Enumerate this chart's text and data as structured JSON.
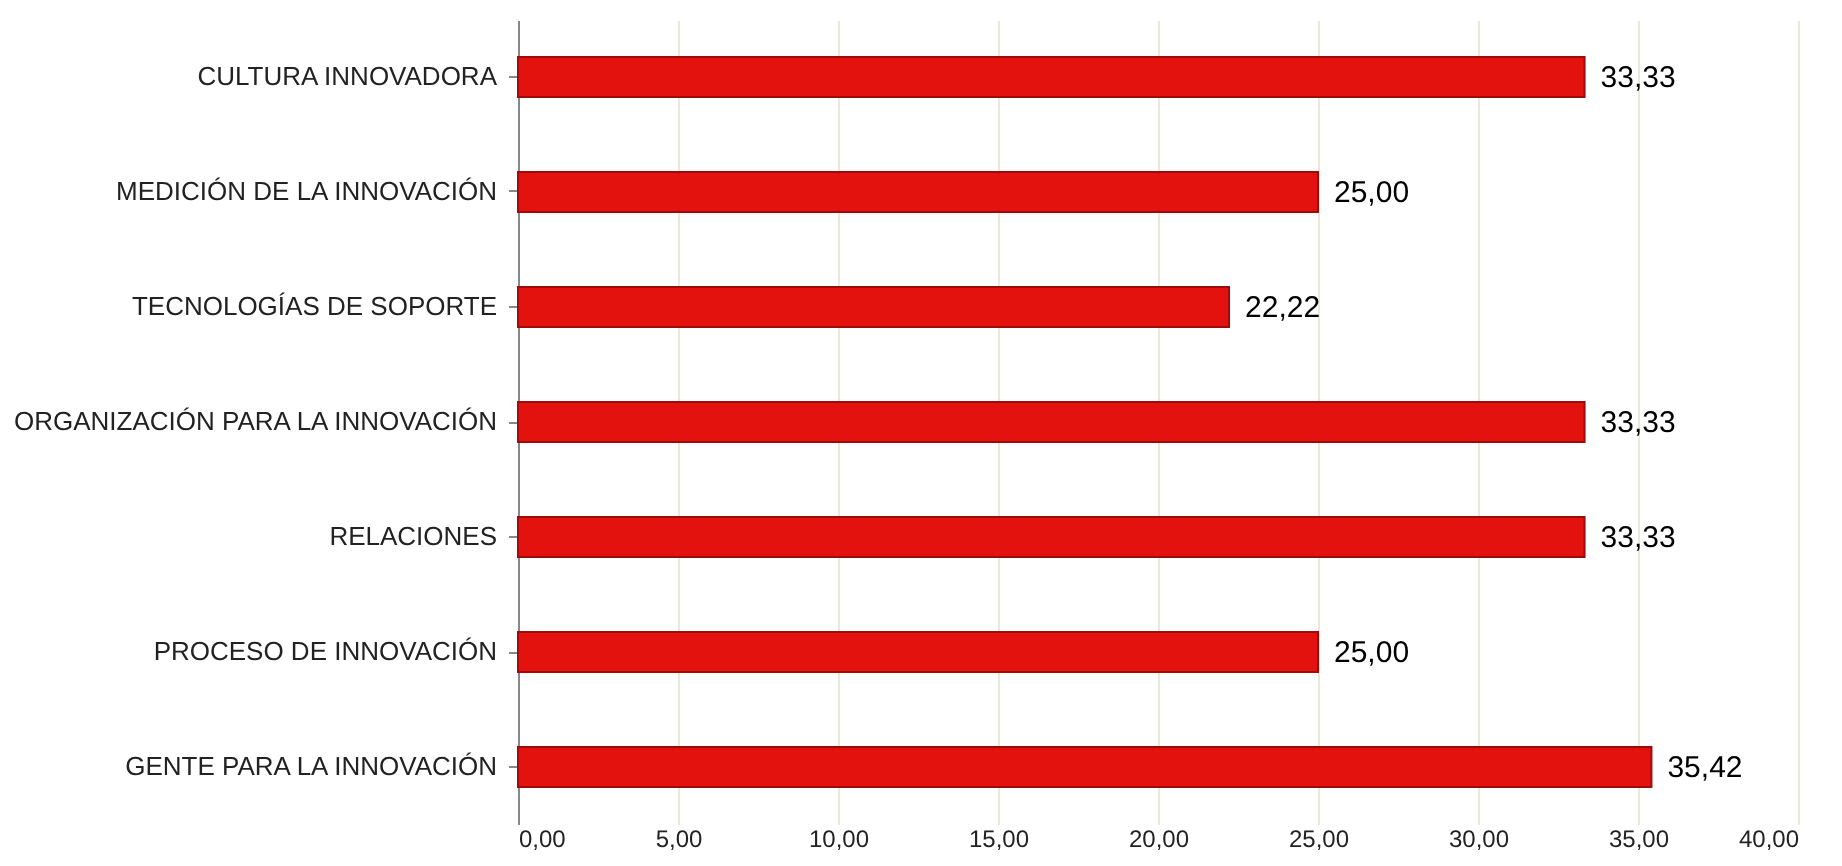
{
  "chart_data": {
    "type": "bar",
    "orientation": "horizontal",
    "categories": [
      "CULTURA INNOVADORA",
      "MEDICIÓN DE LA INNOVACIÓN",
      "TECNOLOGÍAS DE SOPORTE ",
      "ORGANIZACIÓN PARA LA INNOVACIÓN",
      "RELACIONES",
      "PROCESO DE INNOVACIÓN",
      "GENTE PARA LA INNOVACIÓN"
    ],
    "values": [
      33.33,
      25.0,
      22.22,
      33.33,
      33.33,
      25.0,
      35.42
    ],
    "value_labels": [
      "33,33",
      "25,00",
      "22,22",
      "33,33",
      "33,33",
      "25,00",
      "35,42"
    ],
    "color": "#e3120f",
    "xlim": [
      0,
      40
    ],
    "xticks": [
      {
        "value": 0,
        "label": "0,00"
      },
      {
        "value": 5,
        "label": "5,00"
      },
      {
        "value": 10,
        "label": "10,00"
      },
      {
        "value": 15,
        "label": "15,00"
      },
      {
        "value": 20,
        "label": "20,00"
      },
      {
        "value": 25,
        "label": "25,00"
      },
      {
        "value": 30,
        "label": "30,00"
      },
      {
        "value": 35,
        "label": "35,00"
      },
      {
        "value": 40,
        "label": "40,00"
      }
    ],
    "grid": "x"
  }
}
